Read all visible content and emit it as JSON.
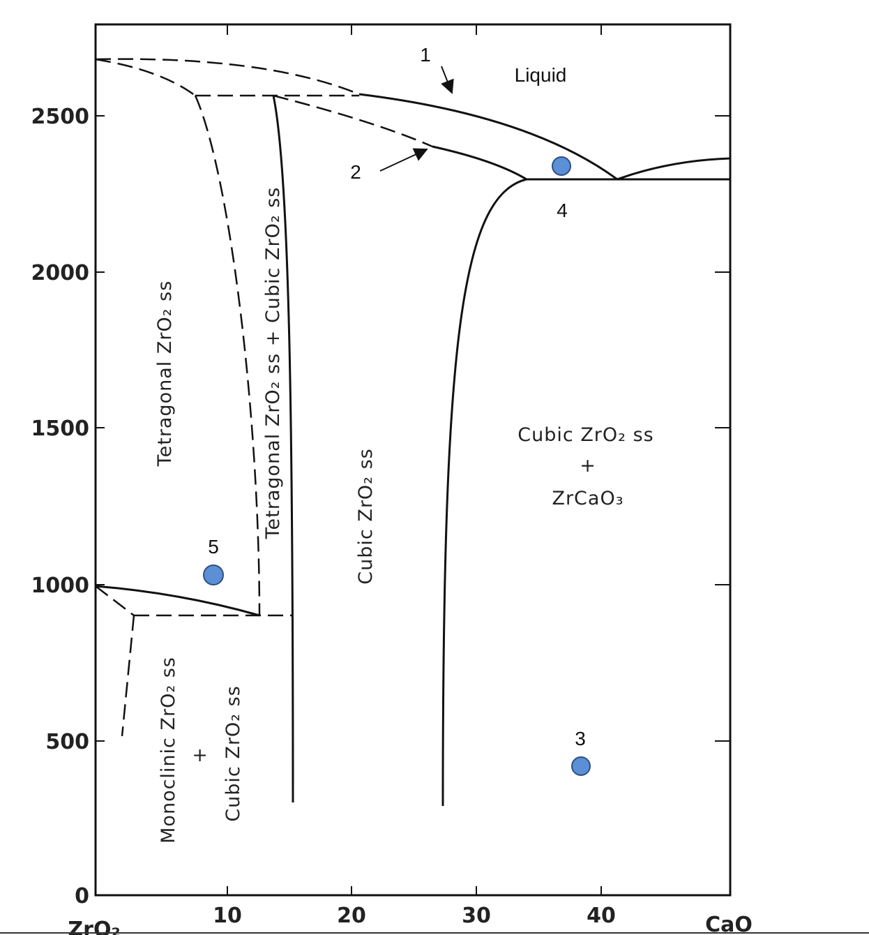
{
  "diagram": {
    "y_axis_labels": [
      "0",
      "500",
      "1000",
      "1500",
      "2000",
      "2500"
    ],
    "x_axis_labels": [
      "ZrO₂",
      "10",
      "20",
      "30",
      "40",
      "CaO"
    ],
    "regions": {
      "liquid": "Liquid",
      "tetragonal": "Tetragonal ZrO₂ ss",
      "tetragonal_cubic": "Tetragonal ZrO₂ ss + Cubic ZrO₂ ss",
      "cubic": "Cubic ZrO₂ ss",
      "cubic_zrcao3": [
        "Cubic ZrO₂ ss",
        "+",
        "ZrCaO₃"
      ],
      "monoclinic_cubic": [
        "Monoclinic ZrO₂ ss",
        "+",
        "Cubic ZrO₂ ss"
      ]
    },
    "points": [
      "1",
      "2",
      "3",
      "4",
      "5"
    ]
  }
}
